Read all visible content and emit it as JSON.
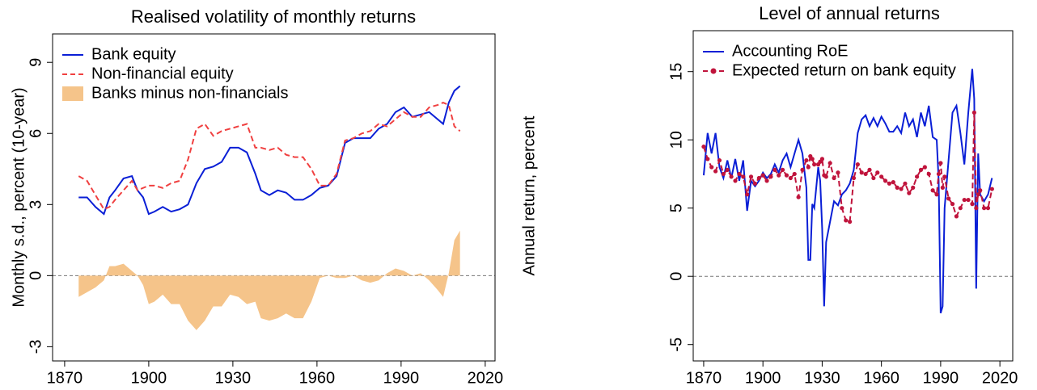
{
  "chart_data": [
    {
      "type": "line",
      "title": "Realised volatility of monthly returns",
      "y_label": "Monthly s.d., percent (10-year)",
      "x": [
        1875,
        1878,
        1881,
        1884,
        1886,
        1888,
        1891,
        1894,
        1896,
        1898,
        1900,
        1902,
        1905,
        1908,
        1911,
        1914,
        1917,
        1920,
        1923,
        1926,
        1929,
        1932,
        1935,
        1938,
        1940,
        1943,
        1946,
        1949,
        1952,
        1955,
        1958,
        1961,
        1964,
        1967,
        1970,
        1973,
        1976,
        1979,
        1982,
        1985,
        1988,
        1991,
        1994,
        1997,
        2000,
        2003,
        2005,
        2007,
        2009,
        2011
      ],
      "series": [
        {
          "name": "Bank equity",
          "color": "#0a1fd6",
          "style": "solid",
          "values": [
            3.3,
            3.3,
            2.9,
            2.6,
            3.3,
            3.6,
            4.1,
            4.2,
            3.6,
            3.3,
            2.6,
            2.7,
            2.9,
            2.7,
            2.8,
            3.0,
            3.9,
            4.5,
            4.6,
            4.8,
            5.4,
            5.4,
            5.2,
            4.3,
            3.6,
            3.4,
            3.6,
            3.5,
            3.2,
            3.2,
            3.4,
            3.7,
            3.8,
            4.2,
            5.6,
            5.8,
            5.8,
            5.8,
            6.2,
            6.4,
            6.9,
            7.1,
            6.7,
            6.8,
            6.9,
            6.6,
            6.4,
            7.3,
            7.8,
            8.0
          ]
        },
        {
          "name": "Non-financial equity",
          "color": "#f04040",
          "style": "dashed",
          "values": [
            4.2,
            4.0,
            3.4,
            2.8,
            2.9,
            3.2,
            3.6,
            4.0,
            3.6,
            3.7,
            3.8,
            3.8,
            3.7,
            3.9,
            4.0,
            4.9,
            6.2,
            6.4,
            5.9,
            6.1,
            6.2,
            6.3,
            6.4,
            5.4,
            5.4,
            5.3,
            5.4,
            5.1,
            5.0,
            5.0,
            4.5,
            3.8,
            3.8,
            4.3,
            5.7,
            5.8,
            6.0,
            6.1,
            6.4,
            6.3,
            6.6,
            6.9,
            6.7,
            6.7,
            7.1,
            7.2,
            7.3,
            7.2,
            6.3,
            6.1
          ]
        },
        {
          "name": "Banks minus non-financials",
          "color": "#f5c48a",
          "style": "area",
          "values": [
            -0.9,
            -0.7,
            -0.5,
            -0.2,
            0.4,
            0.4,
            0.5,
            0.2,
            0,
            -0.4,
            -1.2,
            -1.1,
            -0.8,
            -1.2,
            -1.2,
            -1.9,
            -2.3,
            -1.9,
            -1.3,
            -1.3,
            -0.8,
            -0.9,
            -1.2,
            -1.1,
            -1.8,
            -1.9,
            -1.8,
            -1.6,
            -1.8,
            -1.8,
            -1.1,
            -0.1,
            0,
            -0.1,
            -0.1,
            0,
            -0.2,
            -0.3,
            -0.2,
            0.1,
            0.3,
            0.2,
            0,
            0.1,
            -0.2,
            -0.6,
            -0.9,
            0.1,
            1.5,
            1.9
          ]
        }
      ],
      "xlim": [
        1865.7,
        2023.5
      ],
      "xticks": [
        1870,
        1900,
        1930,
        1960,
        1990,
        2020
      ],
      "ylim": [
        -3.6,
        10.2
      ],
      "yticks": [
        -3,
        0,
        3,
        6,
        9
      ],
      "reference_line": 0,
      "legend": "top-left"
    },
    {
      "type": "line",
      "title": "Level of annual returns",
      "y_label": "Annual return, percent",
      "x": [
        1870,
        1872,
        1874,
        1876,
        1878,
        1880,
        1882,
        1884,
        1886,
        1888,
        1890,
        1892,
        1894,
        1896,
        1898,
        1900,
        1902,
        1904,
        1906,
        1908,
        1910,
        1912,
        1914,
        1916,
        1918,
        1920,
        1922,
        1923,
        1924,
        1925,
        1926,
        1928,
        1929,
        1930,
        1931,
        1932,
        1934,
        1936,
        1938,
        1940,
        1942,
        1944,
        1946,
        1948,
        1950,
        1952,
        1954,
        1956,
        1958,
        1960,
        1962,
        1964,
        1966,
        1968,
        1970,
        1972,
        1974,
        1976,
        1978,
        1980,
        1982,
        1984,
        1986,
        1988,
        1989,
        1990,
        1991,
        1992,
        1994,
        1996,
        1998,
        2000,
        2002,
        2004,
        2006,
        2007,
        2008,
        2009,
        2010,
        2012,
        2014,
        2016
      ],
      "series": [
        {
          "name": "Accounting RoE",
          "color": "#0a1fd6",
          "style": "solid",
          "values": [
            7.4,
            10.5,
            9.0,
            10.5,
            8.0,
            7.2,
            8.5,
            7.2,
            8.6,
            7.0,
            8.5,
            4.8,
            7.0,
            6.6,
            7.0,
            7.6,
            7.2,
            7.5,
            8.2,
            7.6,
            8.5,
            9.0,
            8.0,
            9.0,
            10.0,
            9.0,
            6.5,
            1.2,
            1.2,
            5.3,
            5.0,
            8.0,
            7.0,
            3.5,
            -2.2,
            2.5,
            4.0,
            5.5,
            5.2,
            6.0,
            6.3,
            6.8,
            7.8,
            10.5,
            11.5,
            11.8,
            11.0,
            11.6,
            11.0,
            11.7,
            11.2,
            10.6,
            10.6,
            11.0,
            10.5,
            12.0,
            11.0,
            11.5,
            10.2,
            12.0,
            11.0,
            12.5,
            10.2,
            10.0,
            7.0,
            -2.7,
            -2.2,
            5.0,
            8.5,
            12.0,
            12.5,
            10.5,
            8.2,
            12.0,
            15.2,
            13.0,
            -0.9,
            9.0,
            6.0,
            5.5,
            6.0,
            7.2
          ]
        },
        {
          "name": "Expected return on bank equity",
          "color": "#c0143c",
          "style": "dashed",
          "marker": true,
          "values": [
            9.5,
            8.6,
            8.0,
            7.7,
            8.5,
            7.5,
            7.8,
            7.3,
            7.0,
            7.5,
            7.3,
            6.0,
            7.3,
            6.8,
            7.2,
            7.4,
            7.0,
            7.3,
            7.8,
            7.4,
            7.8,
            7.4,
            7.2,
            7.5,
            5.8,
            7.8,
            8.5,
            8.0,
            8.8,
            8.6,
            8.2,
            8.2,
            8.4,
            8.6,
            7.4,
            7.3,
            8.3,
            7.2,
            7.6,
            5.0,
            4.1,
            4.0,
            7.2,
            8.2,
            7.6,
            7.5,
            7.8,
            7.2,
            7.6,
            7.3,
            7.0,
            6.8,
            6.9,
            6.5,
            6.4,
            6.8,
            6.1,
            6.5,
            7.3,
            7.8,
            8.0,
            7.5,
            6.3,
            6.0,
            7.5,
            8.3,
            6.5,
            7.3,
            5.7,
            5.3,
            4.4,
            5.0,
            5.6,
            5.6,
            5.3,
            12.0,
            5.0,
            6.0,
            6.3,
            5.0,
            5.0,
            6.4
          ]
        }
      ],
      "xlim": [
        1864.7,
        2026.5
      ],
      "xticks": [
        1870,
        1900,
        1930,
        1960,
        1990,
        2020
      ],
      "ylim": [
        -6.2,
        18
      ],
      "yticks": [
        -5,
        0,
        5,
        10,
        15
      ],
      "reference_line": 0,
      "legend": "top-left"
    }
  ]
}
